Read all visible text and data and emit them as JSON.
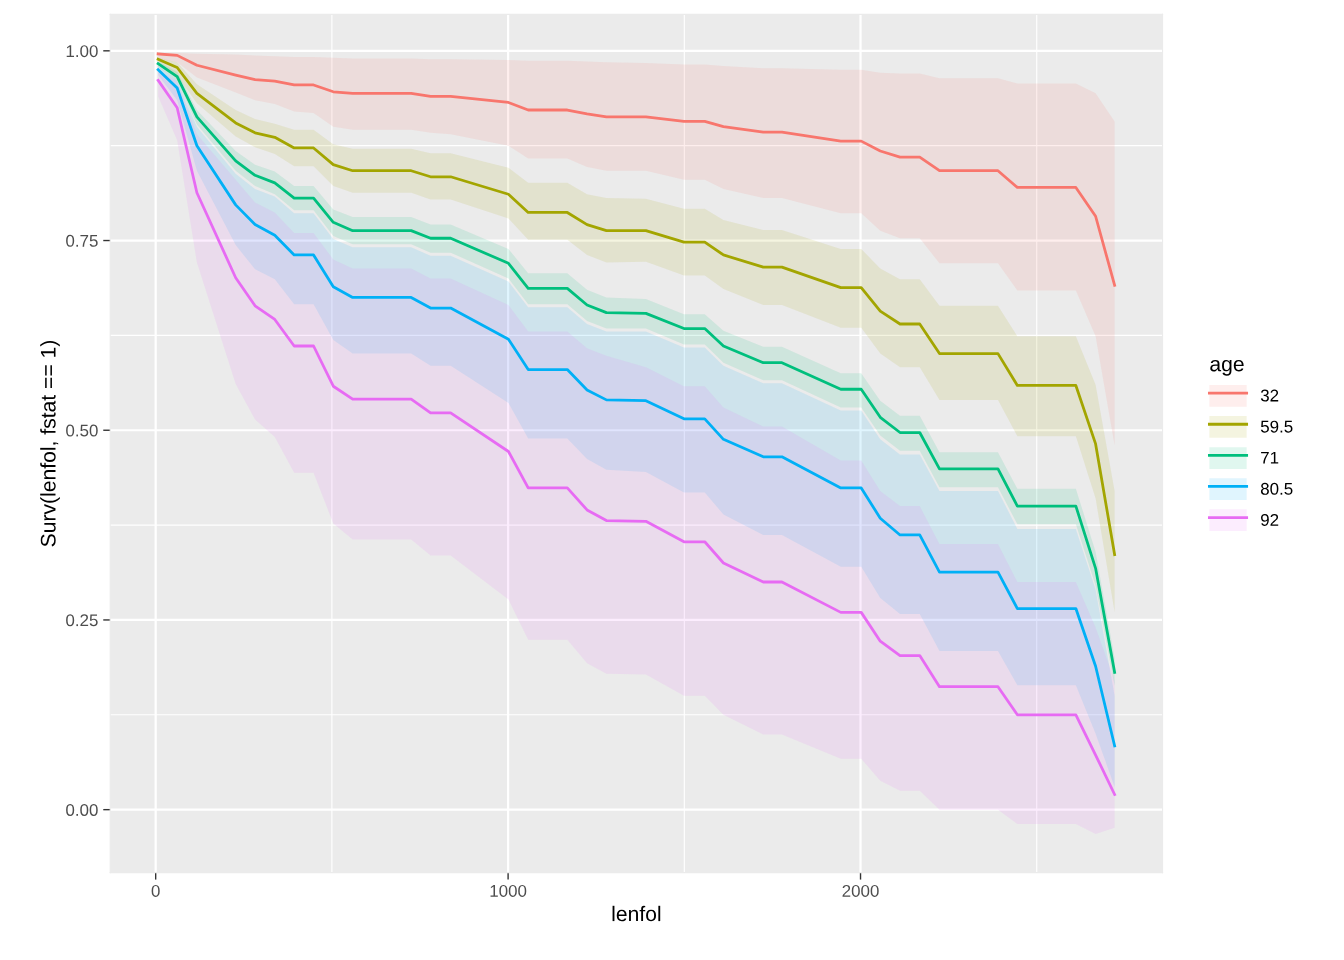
{
  "chart_data": {
    "type": "line",
    "xlabel": "lenfol",
    "ylabel": "Surv(lenfol, fstat == 1)",
    "legend_title": "age",
    "legend": "right",
    "grid": true,
    "x": [
      7,
      61,
      117,
      227,
      282,
      338,
      393,
      448,
      504,
      559,
      725,
      780,
      837,
      1001,
      1057,
      1168,
      1224,
      1279,
      1391,
      1499,
      1558,
      1611,
      1724,
      1777,
      1944,
      2002,
      2056,
      2112,
      2168,
      2224,
      2390,
      2445,
      2611,
      2667,
      2721
    ],
    "xlim": [
      -129,
      2857
    ],
    "xticks": [
      0,
      1000,
      2000
    ],
    "ylim": [
      -0.083,
      1.048
    ],
    "yticks": [
      {
        "value": 0,
        "label": "0.00"
      },
      {
        "value": 0.25,
        "label": "0.25"
      },
      {
        "value": 0.5,
        "label": "0.50"
      },
      {
        "value": 0.75,
        "label": "0.75"
      },
      {
        "value": 1,
        "label": "1.00"
      }
    ],
    "series": [
      {
        "name": "32",
        "color": "#f8766d",
        "values": [
          0.996,
          0.994,
          0.981,
          0.968,
          0.962,
          0.96,
          0.955,
          0.955,
          0.946,
          0.944,
          0.944,
          0.94,
          0.94,
          0.932,
          0.922,
          0.922,
          0.917,
          0.913,
          0.913,
          0.907,
          0.907,
          0.9,
          0.893,
          0.893,
          0.881,
          0.881,
          0.868,
          0.86,
          0.86,
          0.842,
          0.842,
          0.82,
          0.82,
          0.782,
          0.691
        ],
        "upper": [
          0.997,
          0.997,
          0.996,
          0.995,
          0.994,
          0.993,
          0.992,
          0.992,
          0.991,
          0.99,
          0.99,
          0.989,
          0.989,
          0.988,
          0.987,
          0.987,
          0.986,
          0.985,
          0.984,
          0.982,
          0.982,
          0.98,
          0.977,
          0.977,
          0.975,
          0.975,
          0.971,
          0.97,
          0.97,
          0.964,
          0.964,
          0.957,
          0.957,
          0.944,
          0.907
        ],
        "lower": [
          0.99,
          0.985,
          0.965,
          0.945,
          0.935,
          0.93,
          0.92,
          0.918,
          0.9,
          0.896,
          0.896,
          0.892,
          0.89,
          0.875,
          0.858,
          0.858,
          0.847,
          0.842,
          0.842,
          0.83,
          0.83,
          0.818,
          0.806,
          0.806,
          0.786,
          0.786,
          0.763,
          0.753,
          0.753,
          0.72,
          0.72,
          0.684,
          0.684,
          0.624,
          0.48
        ]
      },
      {
        "name": "59.5",
        "color": "#a3a500",
        "values": [
          0.989,
          0.978,
          0.944,
          0.905,
          0.892,
          0.886,
          0.872,
          0.872,
          0.85,
          0.842,
          0.842,
          0.834,
          0.834,
          0.811,
          0.787,
          0.787,
          0.771,
          0.763,
          0.763,
          0.748,
          0.748,
          0.731,
          0.715,
          0.715,
          0.688,
          0.688,
          0.657,
          0.64,
          0.64,
          0.601,
          0.601,
          0.559,
          0.559,
          0.482,
          0.336
        ],
        "upper": [
          0.991,
          0.985,
          0.956,
          0.922,
          0.91,
          0.904,
          0.896,
          0.896,
          0.877,
          0.871,
          0.871,
          0.865,
          0.865,
          0.846,
          0.826,
          0.826,
          0.811,
          0.806,
          0.805,
          0.792,
          0.792,
          0.777,
          0.764,
          0.764,
          0.739,
          0.739,
          0.713,
          0.699,
          0.699,
          0.664,
          0.664,
          0.624,
          0.624,
          0.56,
          0.42
        ],
        "lower": [
          0.986,
          0.967,
          0.931,
          0.887,
          0.873,
          0.864,
          0.848,
          0.848,
          0.822,
          0.813,
          0.813,
          0.804,
          0.804,
          0.779,
          0.751,
          0.751,
          0.731,
          0.721,
          0.722,
          0.704,
          0.704,
          0.686,
          0.665,
          0.665,
          0.635,
          0.635,
          0.601,
          0.583,
          0.583,
          0.54,
          0.54,
          0.492,
          0.492,
          0.41,
          0.26
        ]
      },
      {
        "name": "71",
        "color": "#00bf7d",
        "values": [
          0.983,
          0.966,
          0.913,
          0.855,
          0.836,
          0.826,
          0.806,
          0.806,
          0.774,
          0.763,
          0.763,
          0.753,
          0.753,
          0.72,
          0.687,
          0.687,
          0.665,
          0.655,
          0.654,
          0.634,
          0.634,
          0.611,
          0.589,
          0.589,
          0.554,
          0.554,
          0.517,
          0.497,
          0.497,
          0.449,
          0.449,
          0.4,
          0.4,
          0.318,
          0.181
        ],
        "upper": [
          0.986,
          0.972,
          0.922,
          0.868,
          0.85,
          0.841,
          0.822,
          0.822,
          0.791,
          0.781,
          0.781,
          0.771,
          0.771,
          0.739,
          0.707,
          0.707,
          0.685,
          0.675,
          0.673,
          0.653,
          0.653,
          0.631,
          0.61,
          0.61,
          0.575,
          0.575,
          0.539,
          0.519,
          0.519,
          0.471,
          0.471,
          0.423,
          0.423,
          0.34,
          0.2
        ],
        "lower": [
          0.979,
          0.96,
          0.903,
          0.842,
          0.822,
          0.811,
          0.79,
          0.79,
          0.756,
          0.745,
          0.745,
          0.734,
          0.734,
          0.7,
          0.666,
          0.666,
          0.644,
          0.634,
          0.634,
          0.613,
          0.613,
          0.589,
          0.566,
          0.566,
          0.53,
          0.53,
          0.493,
          0.473,
          0.473,
          0.425,
          0.425,
          0.376,
          0.376,
          0.295,
          0.163
        ]
      },
      {
        "name": "80.5",
        "color": "#00b0f6",
        "values": [
          0.975,
          0.951,
          0.875,
          0.797,
          0.771,
          0.757,
          0.731,
          0.731,
          0.689,
          0.675,
          0.675,
          0.661,
          0.661,
          0.62,
          0.58,
          0.58,
          0.553,
          0.54,
          0.539,
          0.515,
          0.515,
          0.488,
          0.465,
          0.465,
          0.424,
          0.424,
          0.384,
          0.362,
          0.362,
          0.313,
          0.313,
          0.265,
          0.265,
          0.189,
          0.084
        ],
        "upper": [
          0.98,
          0.96,
          0.9,
          0.838,
          0.818,
          0.808,
          0.786,
          0.786,
          0.752,
          0.741,
          0.741,
          0.73,
          0.73,
          0.696,
          0.662,
          0.662,
          0.64,
          0.63,
          0.63,
          0.609,
          0.609,
          0.585,
          0.562,
          0.562,
          0.526,
          0.526,
          0.488,
          0.468,
          0.468,
          0.42,
          0.42,
          0.37,
          0.37,
          0.29,
          0.15
        ],
        "lower": [
          0.968,
          0.935,
          0.842,
          0.744,
          0.712,
          0.699,
          0.666,
          0.666,
          0.619,
          0.601,
          0.601,
          0.585,
          0.585,
          0.536,
          0.489,
          0.489,
          0.462,
          0.448,
          0.445,
          0.418,
          0.418,
          0.389,
          0.362,
          0.362,
          0.32,
          0.32,
          0.279,
          0.258,
          0.258,
          0.209,
          0.209,
          0.164,
          0.164,
          0.1,
          0.03
        ]
      },
      {
        "name": "92",
        "color": "#e76bf3",
        "values": [
          0.961,
          0.925,
          0.813,
          0.701,
          0.664,
          0.646,
          0.611,
          0.611,
          0.558,
          0.541,
          0.541,
          0.523,
          0.523,
          0.472,
          0.424,
          0.424,
          0.395,
          0.381,
          0.38,
          0.353,
          0.353,
          0.325,
          0.3,
          0.3,
          0.26,
          0.26,
          0.222,
          0.203,
          0.203,
          0.162,
          0.162,
          0.125,
          0.125,
          0.072,
          0.02
        ],
        "upper": [
          0.975,
          0.96,
          0.89,
          0.83,
          0.8,
          0.787,
          0.76,
          0.76,
          0.725,
          0.713,
          0.713,
          0.7,
          0.7,
          0.665,
          0.63,
          0.63,
          0.608,
          0.598,
          0.583,
          0.558,
          0.558,
          0.53,
          0.505,
          0.505,
          0.46,
          0.46,
          0.42,
          0.4,
          0.4,
          0.35,
          0.35,
          0.3,
          0.3,
          0.24,
          0.17
        ],
        "lower": [
          0.94,
          0.882,
          0.721,
          0.561,
          0.514,
          0.491,
          0.444,
          0.444,
          0.377,
          0.356,
          0.356,
          0.335,
          0.335,
          0.277,
          0.224,
          0.224,
          0.193,
          0.179,
          0.178,
          0.15,
          0.15,
          0.125,
          0.099,
          0.099,
          0.067,
          0.067,
          0.038,
          0.025,
          0.025,
          0.0,
          0.0,
          -0.019,
          -0.019,
          -0.032,
          -0.024
        ]
      }
    ]
  }
}
